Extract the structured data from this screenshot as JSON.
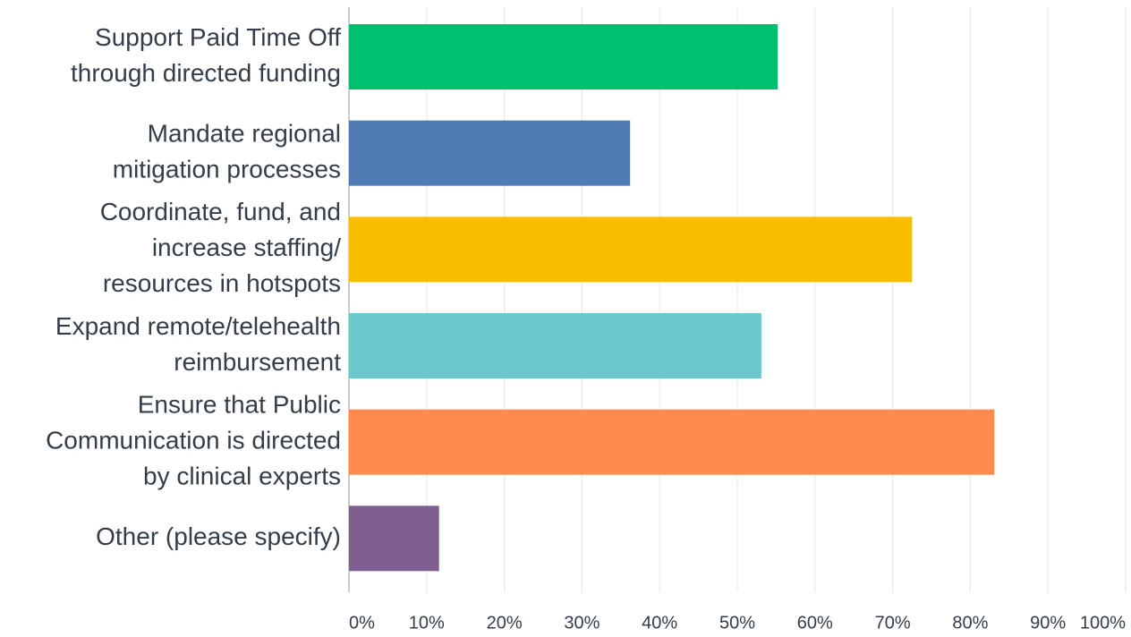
{
  "chart_data": {
    "type": "hbar",
    "categories": [
      [
        "Support Paid Time Off",
        "through directed funding"
      ],
      [
        "Mandate regional",
        "mitigation processes"
      ],
      [
        "Coordinate, fund, and",
        "increase staffing/",
        "resources in hotspots"
      ],
      [
        "Expand remote/telehealth",
        "reimbursement"
      ],
      [
        "Ensure that Public",
        "Communication is directed",
        "by clinical experts"
      ],
      [
        "Other (please specify)"
      ]
    ],
    "values": [
      55.2,
      36.2,
      72.5,
      53.1,
      83.1,
      11.6
    ],
    "colors": [
      "#00bf6f",
      "#507cb6",
      "#f9be00",
      "#6bc8cd",
      "#ff8b4f",
      "#7f5f90"
    ],
    "xlim": [
      0,
      100
    ],
    "xticks": [
      {
        "value": 0,
        "label": "0%"
      },
      {
        "value": 10,
        "label": "10%"
      },
      {
        "value": 20,
        "label": "20%"
      },
      {
        "value": 30,
        "label": "30%"
      },
      {
        "value": 40,
        "label": "40%"
      },
      {
        "value": 50,
        "label": "50%"
      },
      {
        "value": 60,
        "label": "60%"
      },
      {
        "value": 70,
        "label": "70%"
      },
      {
        "value": 80,
        "label": "80%"
      },
      {
        "value": 90,
        "label": "90%"
      },
      {
        "value": 100,
        "label": "100%"
      }
    ],
    "grid": true
  }
}
